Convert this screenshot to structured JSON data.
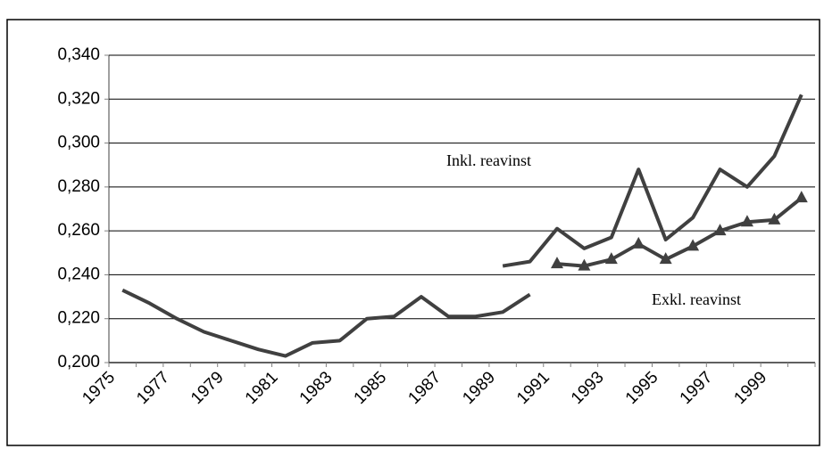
{
  "chart_data": {
    "type": "line",
    "categories": [
      "1975",
      null,
      "1977",
      null,
      "1979",
      null,
      "1981",
      null,
      "1983",
      null,
      "1985",
      null,
      "1987",
      null,
      "1989",
      null,
      "1991",
      null,
      "1993",
      null,
      "1995",
      null,
      "1997",
      null,
      "1999",
      null
    ],
    "series": [
      {
        "color": "#404040",
        "marker": "none",
        "values": [
          0.233,
          0.227,
          0.22,
          0.214,
          0.21,
          0.206,
          0.203,
          0.209,
          0.21,
          0.22,
          0.221,
          0.23,
          0.221,
          0.221,
          0.223,
          0.231,
          null,
          null,
          null,
          null,
          null,
          null,
          null,
          null,
          null,
          null
        ]
      },
      {
        "name": "Inkl. reavinst",
        "color": "#404040",
        "marker": "none",
        "values": [
          null,
          null,
          null,
          null,
          null,
          null,
          null,
          null,
          null,
          null,
          null,
          null,
          null,
          null,
          0.244,
          0.246,
          0.261,
          0.252,
          0.257,
          0.288,
          0.256,
          0.266,
          0.288,
          0.28,
          0.294,
          0.322
        ]
      },
      {
        "name": "Exkl. reavinst",
        "color": "#404040",
        "marker": "triangle",
        "values": [
          null,
          null,
          null,
          null,
          null,
          null,
          null,
          null,
          null,
          null,
          null,
          null,
          null,
          null,
          null,
          null,
          0.245,
          0.244,
          0.247,
          0.254,
          0.247,
          0.253,
          0.26,
          0.264,
          0.265,
          0.275
        ]
      }
    ],
    "ylim": [
      0.2,
      0.34
    ],
    "yticks": [
      {
        "value": 0.2,
        "label": "0,200"
      },
      {
        "value": 0.22,
        "label": "0,220"
      },
      {
        "value": 0.24,
        "label": "0,240"
      },
      {
        "value": 0.26,
        "label": "0,260"
      },
      {
        "value": 0.28,
        "label": "0,280"
      },
      {
        "value": 0.3,
        "label": "0,300"
      },
      {
        "value": 0.32,
        "label": "0,320"
      },
      {
        "value": 0.34,
        "label": "0,340"
      }
    ],
    "grid": true
  }
}
